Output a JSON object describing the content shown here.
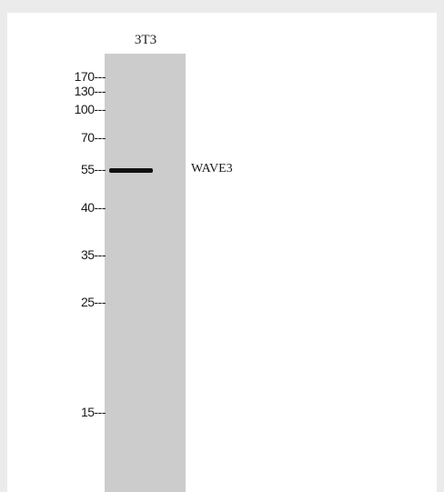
{
  "blot": {
    "lane_label": "3T3",
    "band_label": "WAVE3",
    "markers": [
      "170",
      "130",
      "100",
      "70",
      "55",
      "40",
      "35",
      "25",
      "15"
    ],
    "marker_suffix": "---"
  }
}
